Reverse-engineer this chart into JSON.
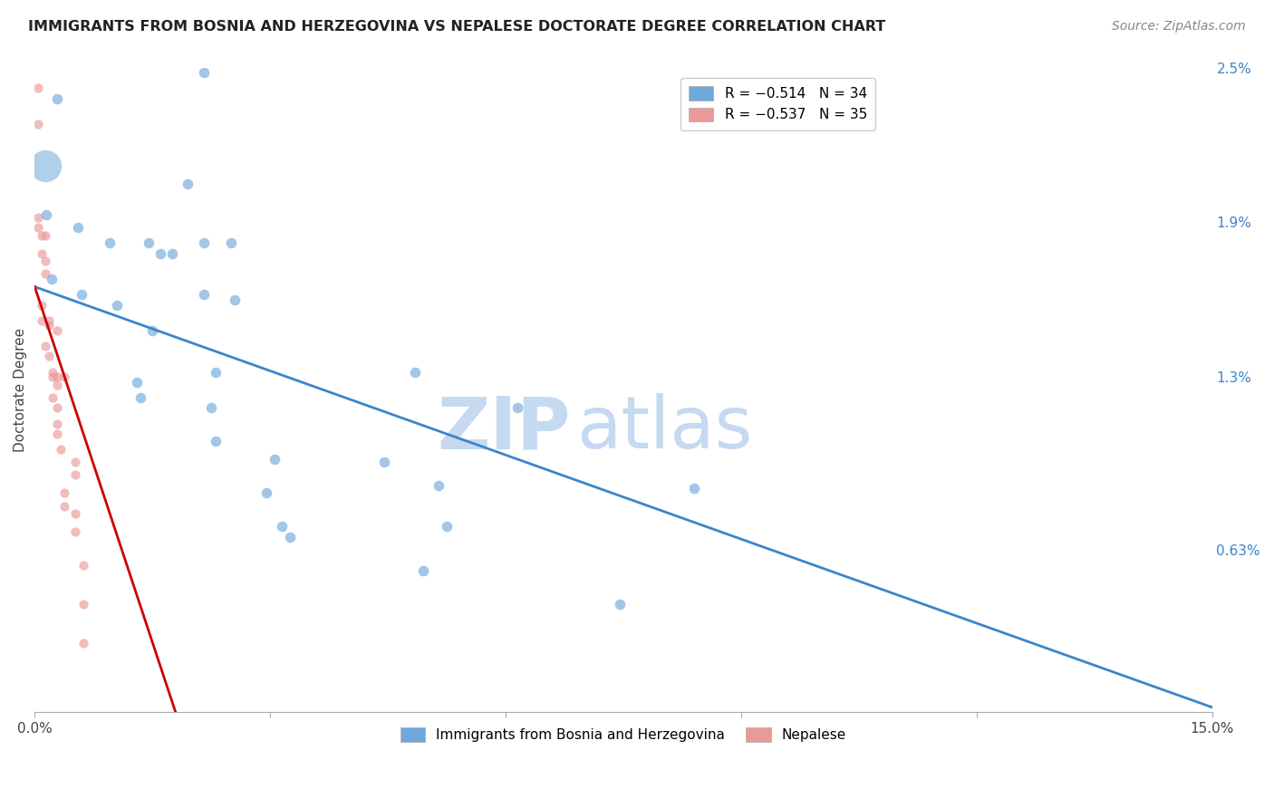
{
  "title": "IMMIGRANTS FROM BOSNIA AND HERZEGOVINA VS NEPALESE DOCTORATE DEGREE CORRELATION CHART",
  "source": "Source: ZipAtlas.com",
  "ylabel": "Doctorate Degree",
  "x_min": 0.0,
  "x_max": 15.0,
  "y_min": 0.0,
  "y_max": 2.5,
  "x_ticks": [
    0.0,
    3.0,
    6.0,
    9.0,
    12.0,
    15.0
  ],
  "x_tick_labels": [
    "0.0%",
    "",
    "",
    "",
    "",
    "15.0%"
  ],
  "y_ticks_right": [
    0.63,
    1.3,
    1.9,
    2.5
  ],
  "y_tick_labels_right": [
    "0.63%",
    "1.3%",
    "1.9%",
    "2.5%"
  ],
  "legend_blue_r": "R = −0.514",
  "legend_blue_n": "N = 34",
  "legend_pink_r": "R = −0.537",
  "legend_pink_n": "N = 35",
  "blue_color": "#6fa8dc",
  "pink_color": "#ea9999",
  "blue_line_color": "#3d85c8",
  "pink_line_color": "#cc0000",
  "blue_scatter": [
    [
      0.28,
      2.38
    ],
    [
      2.15,
      2.48
    ],
    [
      1.95,
      2.05
    ],
    [
      0.15,
      1.93
    ],
    [
      0.55,
      1.88
    ],
    [
      0.95,
      1.82
    ],
    [
      1.45,
      1.82
    ],
    [
      1.6,
      1.78
    ],
    [
      1.75,
      1.78
    ],
    [
      2.15,
      1.82
    ],
    [
      2.5,
      1.82
    ],
    [
      0.22,
      1.68
    ],
    [
      0.6,
      1.62
    ],
    [
      1.05,
      1.58
    ],
    [
      2.15,
      1.62
    ],
    [
      2.55,
      1.6
    ],
    [
      1.5,
      1.48
    ],
    [
      1.3,
      1.28
    ],
    [
      2.3,
      1.32
    ],
    [
      4.85,
      1.32
    ],
    [
      6.15,
      1.18
    ],
    [
      1.35,
      1.22
    ],
    [
      2.25,
      1.18
    ],
    [
      2.3,
      1.05
    ],
    [
      3.05,
      0.98
    ],
    [
      4.45,
      0.97
    ],
    [
      5.15,
      0.88
    ],
    [
      2.95,
      0.85
    ],
    [
      3.15,
      0.72
    ],
    [
      3.25,
      0.68
    ],
    [
      5.25,
      0.72
    ],
    [
      8.4,
      0.87
    ],
    [
      4.95,
      0.55
    ],
    [
      7.45,
      0.42
    ]
  ],
  "blue_large_dot": [
    0.13,
    2.12
  ],
  "blue_large_dot_size": 650,
  "pink_scatter": [
    [
      0.04,
      2.42
    ],
    [
      0.04,
      2.28
    ],
    [
      0.04,
      1.92
    ],
    [
      0.04,
      1.88
    ],
    [
      0.09,
      1.85
    ],
    [
      0.14,
      1.85
    ],
    [
      0.09,
      1.78
    ],
    [
      0.14,
      1.75
    ],
    [
      0.14,
      1.7
    ],
    [
      0.09,
      1.58
    ],
    [
      0.09,
      1.52
    ],
    [
      0.18,
      1.52
    ],
    [
      0.18,
      1.5
    ],
    [
      0.28,
      1.48
    ],
    [
      0.14,
      1.42
    ],
    [
      0.18,
      1.38
    ],
    [
      0.23,
      1.32
    ],
    [
      0.23,
      1.3
    ],
    [
      0.28,
      1.3
    ],
    [
      0.28,
      1.27
    ],
    [
      0.38,
      1.3
    ],
    [
      0.23,
      1.22
    ],
    [
      0.28,
      1.18
    ],
    [
      0.28,
      1.12
    ],
    [
      0.28,
      1.08
    ],
    [
      0.33,
      1.02
    ],
    [
      0.52,
      0.97
    ],
    [
      0.52,
      0.92
    ],
    [
      0.38,
      0.85
    ],
    [
      0.38,
      0.8
    ],
    [
      0.52,
      0.77
    ],
    [
      0.52,
      0.7
    ],
    [
      0.62,
      0.57
    ],
    [
      0.62,
      0.42
    ],
    [
      0.62,
      0.27
    ]
  ],
  "blue_line_x0": 0.0,
  "blue_line_y0": 1.65,
  "blue_line_x1": 15.0,
  "blue_line_y1": 0.02,
  "pink_line_x0": 0.0,
  "pink_line_y0": 1.65,
  "pink_line_x1": 1.85,
  "pink_line_y1": -0.05,
  "watermark_zip": "ZIP",
  "watermark_atlas": "atlas",
  "watermark_color": "#c5d9f1",
  "background_color": "#ffffff",
  "grid_color": "#cccccc"
}
